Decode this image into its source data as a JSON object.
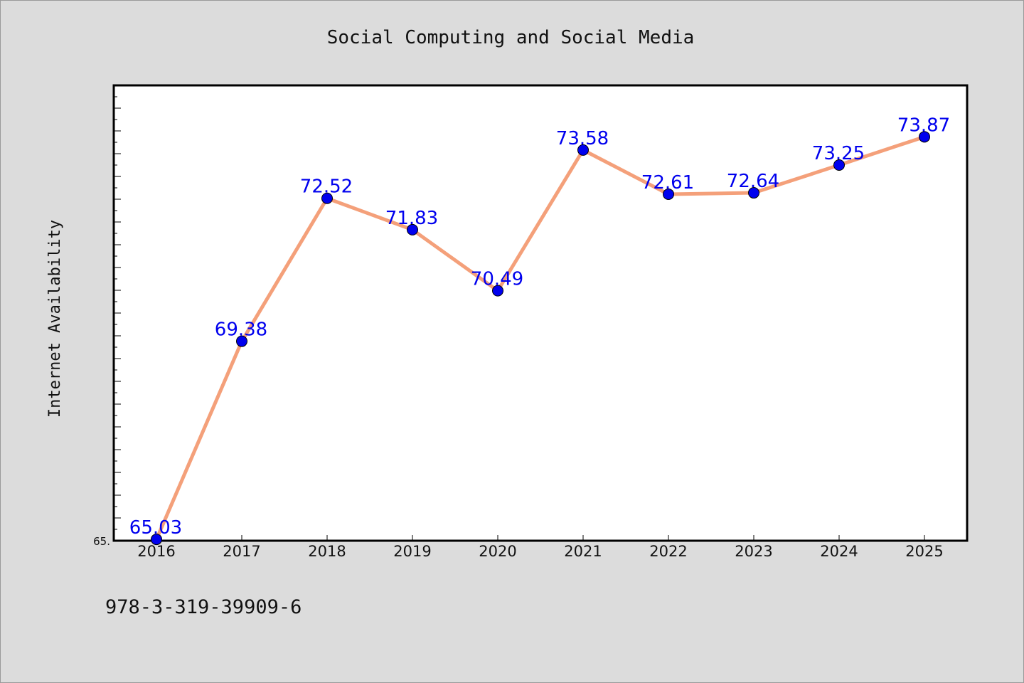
{
  "chart_data": {
    "type": "line",
    "title": "Social Computing and Social Media",
    "ylabel": "Internet Availability",
    "xlabel": "",
    "x": [
      "2016",
      "2017",
      "2018",
      "2019",
      "2020",
      "2021",
      "2022",
      "2023",
      "2024",
      "2025"
    ],
    "series": [
      {
        "values": [
          65.03,
          69.38,
          72.52,
          71.83,
          70.49,
          73.58,
          72.61,
          72.64,
          73.25,
          73.87
        ],
        "labels": [
          "65.03",
          "69.38",
          "72.52",
          "71.83",
          "70.49",
          "73.58",
          "72.61",
          "72.64",
          "73.25",
          "73.87"
        ],
        "line_color": "#f4a07a",
        "marker_color": "#0000ee"
      }
    ],
    "ylim": [
      65.0,
      75.0
    ],
    "y_tick_label": "65.",
    "grid": false,
    "legend": "none"
  },
  "footer": {
    "isbn": "978-3-319-39909-6"
  },
  "colors": {
    "background": "#dcdcdc",
    "plot_background": "#ffffff",
    "label_color": "#0000ee"
  }
}
